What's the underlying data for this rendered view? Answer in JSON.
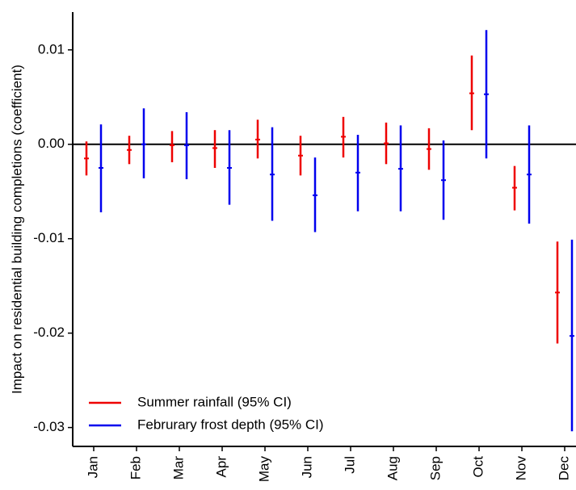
{
  "chart_data": {
    "type": "errorbar",
    "ylabel": "Impact on residential building completions (coefficient)",
    "categories": [
      "Jan",
      "Feb",
      "Mar",
      "Apr",
      "May",
      "Jun",
      "Jul",
      "Aug",
      "Sep",
      "Oct",
      "Nov",
      "Dec"
    ],
    "series": [
      {
        "name": "Summer rainfall (95% CI)",
        "color": "#ee0000",
        "values": [
          -0.0015,
          -0.0006,
          -0.0001,
          -0.0004,
          0.0005,
          -0.0012,
          0.0008,
          0.0001,
          -0.0005,
          0.0054,
          -0.0046,
          -0.0157
        ],
        "lower": [
          -0.0033,
          -0.0021,
          -0.0019,
          -0.0025,
          -0.0015,
          -0.0033,
          -0.0014,
          -0.0021,
          -0.0027,
          0.0015,
          -0.007,
          -0.0211
        ],
        "upper": [
          0.0003,
          0.0009,
          0.0014,
          0.0015,
          0.0026,
          0.0009,
          0.0029,
          0.0023,
          0.0017,
          0.0094,
          -0.0023,
          -0.0103
        ]
      },
      {
        "name": "Februrary frost depth (95% CI)",
        "color": "#0000ee",
        "values": [
          -0.0025,
          0.0,
          -0.0001,
          -0.0025,
          -0.0032,
          -0.0054,
          -0.003,
          -0.0026,
          -0.0038,
          0.0053,
          -0.0032,
          -0.0203
        ],
        "lower": [
          -0.0072,
          -0.0036,
          -0.0037,
          -0.0064,
          -0.0081,
          -0.0093,
          -0.0071,
          -0.0071,
          -0.008,
          -0.0015,
          -0.0084,
          -0.0304
        ],
        "upper": [
          0.0021,
          0.0038,
          0.0034,
          0.0015,
          0.0018,
          -0.0014,
          0.001,
          0.002,
          0.0004,
          0.0121,
          0.002,
          -0.0101
        ]
      }
    ],
    "ylim": [
      -0.032,
      0.014
    ],
    "yticks": [
      0.01,
      {
        "value": 0,
        "label": "0.00"
      },
      -0.01,
      -0.02,
      -0.03
    ],
    "hline": 0,
    "legend": "bottom-left"
  }
}
